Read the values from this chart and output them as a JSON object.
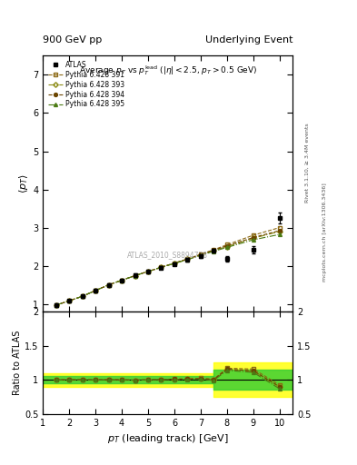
{
  "title_top": "900 GeV pp",
  "title_top_right": "Underlying Event",
  "ylabel_main": "$\\langle p_T \\rangle$",
  "ylabel_ratio": "Ratio to ATLAS",
  "xlabel": "$p_T$ (leading track) [GeV]",
  "watermark": "ATLAS_2010_S8894728",
  "atlas_x": [
    1.5,
    2.0,
    2.5,
    3.0,
    3.5,
    4.0,
    4.5,
    5.0,
    5.5,
    6.0,
    6.5,
    7.0,
    7.5,
    8.0,
    9.0,
    10.0
  ],
  "atlas_y": [
    0.97,
    1.08,
    1.2,
    1.35,
    1.5,
    1.62,
    1.75,
    1.85,
    1.95,
    2.05,
    2.15,
    2.25,
    2.4,
    2.18,
    2.42,
    3.25
  ],
  "atlas_yerr": [
    0.04,
    0.04,
    0.04,
    0.04,
    0.04,
    0.04,
    0.04,
    0.04,
    0.04,
    0.04,
    0.05,
    0.05,
    0.05,
    0.08,
    0.1,
    0.15
  ],
  "py391_y": [
    0.97,
    1.08,
    1.2,
    1.35,
    1.5,
    1.62,
    1.74,
    1.85,
    1.96,
    2.07,
    2.18,
    2.3,
    2.42,
    2.55,
    2.8,
    3.0
  ],
  "py393_y": [
    0.97,
    1.08,
    1.2,
    1.35,
    1.5,
    1.62,
    1.74,
    1.85,
    1.96,
    2.06,
    2.17,
    2.28,
    2.4,
    2.5,
    2.72,
    2.9
  ],
  "py394_y": [
    0.97,
    1.08,
    1.2,
    1.35,
    1.5,
    1.62,
    1.74,
    1.85,
    1.96,
    2.07,
    2.17,
    2.29,
    2.41,
    2.52,
    2.74,
    2.92
  ],
  "py395_y": [
    0.97,
    1.08,
    1.2,
    1.35,
    1.5,
    1.62,
    1.74,
    1.85,
    1.96,
    2.06,
    2.16,
    2.27,
    2.38,
    2.48,
    2.68,
    2.82
  ],
  "c391": "#8B6914",
  "c393": "#8B8B14",
  "c394": "#6B4500",
  "c395": "#4B7B14"
}
